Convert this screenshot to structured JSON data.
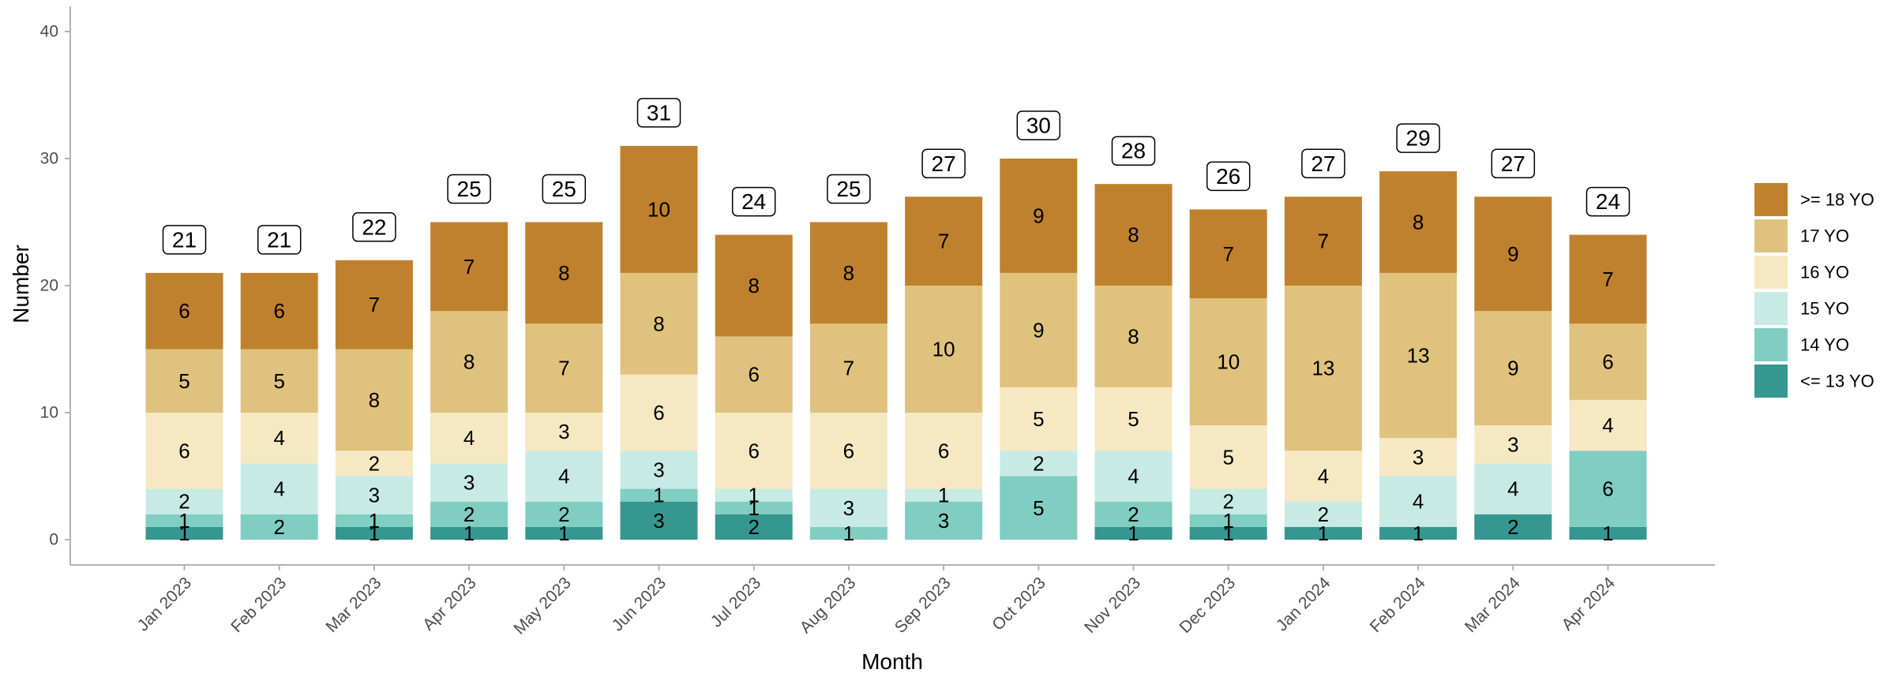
{
  "chart_data": {
    "type": "bar",
    "stacked": true,
    "xlabel": "Month",
    "ylabel": "Number",
    "ylim": [
      0,
      40
    ],
    "yticks": [
      0,
      10,
      20,
      30,
      40
    ],
    "legend_position": "right",
    "grid": false,
    "categories": [
      "Jan 2023",
      "Feb 2023",
      "Mar 2023",
      "Apr 2023",
      "May 2023",
      "Jun 2023",
      "Jul 2023",
      "Aug 2023",
      "Sep 2023",
      "Oct 2023",
      "Nov 2023",
      "Dec 2023",
      "Jan 2024",
      "Feb 2024",
      "Mar 2024",
      "Apr 2024"
    ],
    "totals": [
      21,
      21,
      22,
      25,
      25,
      31,
      24,
      25,
      27,
      30,
      28,
      26,
      27,
      29,
      27,
      24
    ],
    "series": [
      {
        "name": "<= 13 YO",
        "color": "#35978f",
        "values": [
          1,
          0,
          1,
          1,
          1,
          3,
          2,
          0,
          0,
          0,
          1,
          1,
          1,
          1,
          2,
          1
        ]
      },
      {
        "name": "14 YO",
        "color": "#80cdc1",
        "values": [
          1,
          2,
          1,
          2,
          2,
          1,
          1,
          1,
          3,
          5,
          2,
          1,
          0,
          0,
          0,
          6
        ]
      },
      {
        "name": "15 YO",
        "color": "#c7eae5",
        "values": [
          2,
          4,
          3,
          3,
          4,
          3,
          1,
          3,
          1,
          2,
          4,
          2,
          2,
          4,
          4,
          0
        ]
      },
      {
        "name": "16 YO",
        "color": "#f6e8c3",
        "values": [
          6,
          4,
          2,
          4,
          3,
          6,
          6,
          6,
          6,
          5,
          5,
          5,
          4,
          3,
          3,
          4
        ]
      },
      {
        "name": "17 YO",
        "color": "#dfc27d",
        "values": [
          5,
          5,
          8,
          8,
          7,
          8,
          6,
          7,
          10,
          9,
          8,
          10,
          13,
          13,
          9,
          6
        ]
      },
      {
        "name": ">= 18 YO",
        "color": "#bf812d",
        "values": [
          6,
          6,
          7,
          7,
          8,
          10,
          8,
          8,
          7,
          9,
          8,
          7,
          7,
          8,
          9,
          7
        ]
      }
    ]
  }
}
